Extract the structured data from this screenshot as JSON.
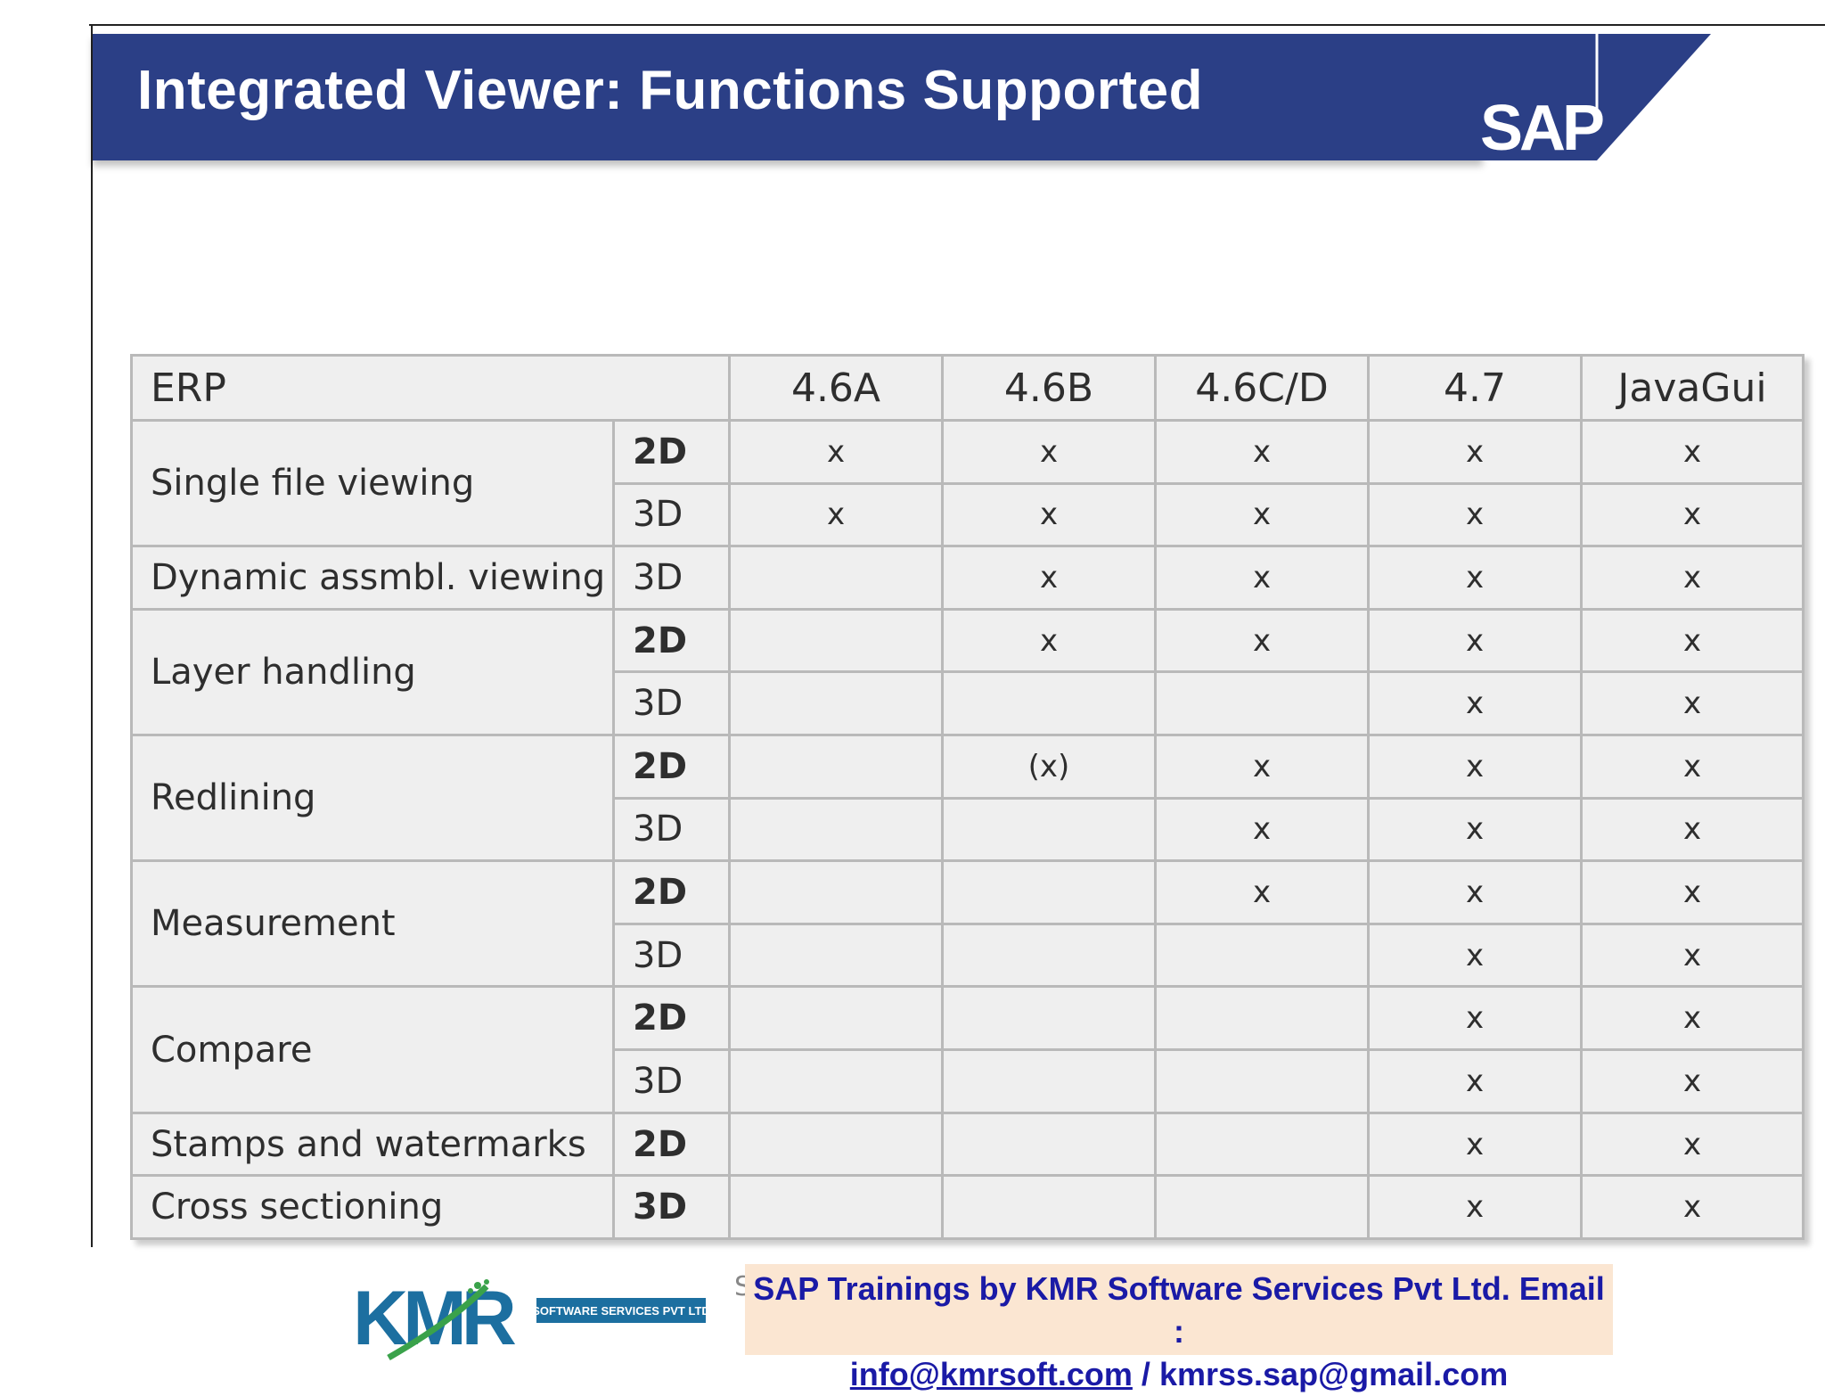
{
  "slide": {
    "title": "Integrated Viewer: Functions Supported",
    "logo_text": "SAP"
  },
  "table": {
    "header": [
      "ERP",
      "4.6A",
      "4.6B",
      "4.6C/D",
      "4.7",
      "JavaGui"
    ],
    "groups": [
      {
        "feature": "Single file viewing",
        "rows": [
          {
            "dim": "2D",
            "marks": [
              "x",
              "x",
              "x",
              "x",
              "x"
            ]
          },
          {
            "dim": "3D",
            "marks": [
              "x",
              "x",
              "x",
              "x",
              "x"
            ]
          }
        ]
      },
      {
        "feature": "Dynamic assmbl. viewing",
        "rows": [
          {
            "dim": "3D",
            "marks": [
              "",
              "x",
              "x",
              "x",
              "x"
            ]
          }
        ]
      },
      {
        "feature": "Layer handling",
        "rows": [
          {
            "dim": "2D",
            "marks": [
              "",
              "x",
              "x",
              "x",
              "x"
            ]
          },
          {
            "dim": "3D",
            "marks": [
              "",
              "",
              "",
              "x",
              "x"
            ]
          }
        ]
      },
      {
        "feature": "Redlining",
        "rows": [
          {
            "dim": "2D",
            "marks": [
              "",
              "(x)",
              "x",
              "x",
              "x"
            ]
          },
          {
            "dim": "3D",
            "marks": [
              "",
              "",
              "x",
              "x",
              "x"
            ]
          }
        ]
      },
      {
        "feature": "Measurement",
        "rows": [
          {
            "dim": "2D",
            "marks": [
              "",
              "",
              "x",
              "x",
              "x"
            ]
          },
          {
            "dim": "3D",
            "marks": [
              "",
              "",
              "",
              "x",
              "x"
            ]
          }
        ]
      },
      {
        "feature": "Compare",
        "rows": [
          {
            "dim": "2D",
            "marks": [
              "",
              "",
              "",
              "x",
              "x"
            ]
          },
          {
            "dim": "3D",
            "marks": [
              "",
              "",
              "",
              "x",
              "x"
            ]
          }
        ]
      },
      {
        "feature": "Stamps and watermarks",
        "rows": [
          {
            "dim": "2D",
            "marks": [
              "",
              "",
              "",
              "x",
              "x"
            ]
          }
        ]
      },
      {
        "feature": "Cross sectioning",
        "rows": [
          {
            "dim": "3D",
            "marks": [
              "",
              "",
              "",
              "x",
              "x"
            ]
          }
        ]
      }
    ]
  },
  "footer": {
    "kmr_logo_text": "KMR",
    "kmr_tagline": "SOFTWARE SERVICES PVT LTD",
    "partial_char": "S",
    "line1": "SAP Trainings by KMR Software Services Pvt Ltd. Email :",
    "email1": "info@kmrsoft.com",
    "separator": " / ",
    "email2": "kmrss.sap@gmail.com",
    "colors": {
      "title_bar": "#2b3f86",
      "footer_bg": "#fbe6d2",
      "footer_text": "#1a1aa6",
      "kmr_blue": "#1c6fa0",
      "kmr_green": "#3aa24a"
    }
  }
}
